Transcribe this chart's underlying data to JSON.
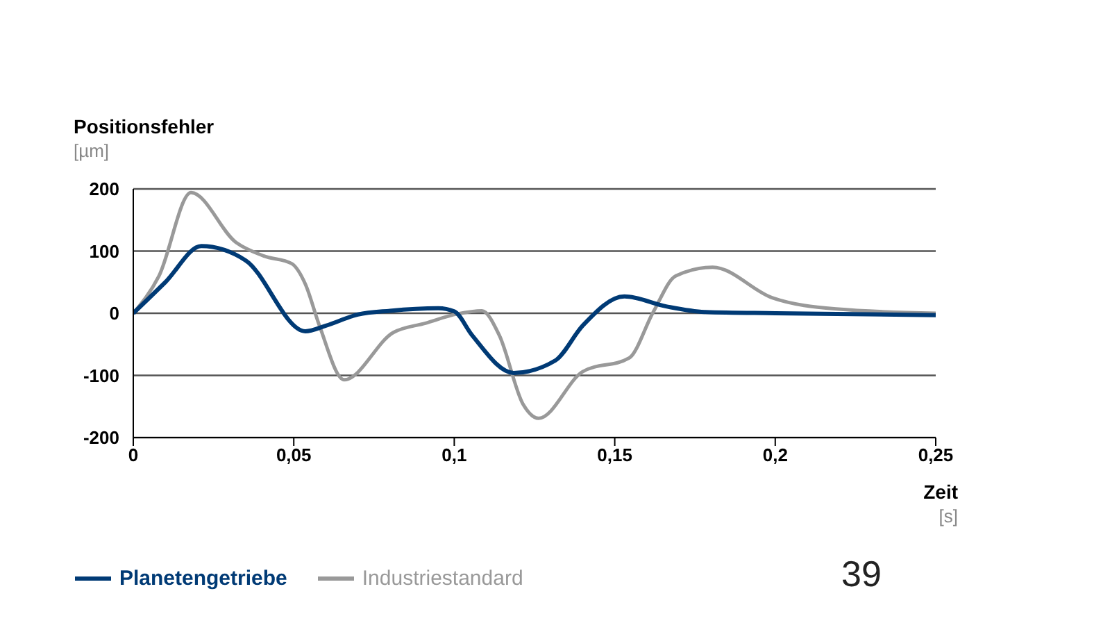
{
  "chart_data": {
    "type": "line",
    "ylabel": "Positionsfehler\n[µm]",
    "xlabel": "Zeit\n[s]",
    "xlim": [
      0,
      0.25
    ],
    "xticks": [
      0,
      {
        "value": 0.05,
        "label": "0,05"
      },
      {
        "value": 0.1,
        "label": "0,1"
      },
      {
        "value": 0.15,
        "label": "0,15"
      },
      {
        "value": 0.2,
        "label": "0,2"
      },
      {
        "value": 0.25,
        "label": "0,25"
      }
    ],
    "ylim": [
      -200,
      200
    ],
    "yticks": [
      -200,
      -100,
      0,
      100,
      200
    ],
    "grid": "y",
    "legend": "bottom",
    "marker": "none",
    "line_style": "solid",
    "annotations": [
      "39"
    ],
    "series": [
      {
        "name": "Planetengetriebe",
        "color": "#003a75",
        "x": [
          0,
          0.01,
          0.0212,
          0.035,
          0.0536,
          0.06,
          0.07,
          0.08,
          0.095,
          0.1,
          0.1055,
          0.1185,
          0.1315,
          0.14,
          0.153,
          0.166,
          0.178,
          0.2,
          0.25
        ],
        "values": [
          0,
          50,
          108,
          85,
          -29,
          -20,
          -2,
          4,
          8,
          3,
          -35,
          -96,
          -76,
          -20,
          27,
          11,
          2,
          0,
          -3
        ]
      },
      {
        "name": "Industriestandard",
        "color": "#999999",
        "x": [
          0,
          0.008,
          0.018,
          0.032,
          0.0407,
          0.0493,
          0.0536,
          0.058,
          0.0657,
          0.081,
          0.091,
          0.101,
          0.1086,
          0.114,
          0.1215,
          0.1263,
          0.14,
          0.1545,
          0.162,
          0.169,
          0.1805,
          0.199,
          0.219,
          0.25
        ],
        "values": [
          0,
          60,
          194,
          114,
          92,
          80,
          47,
          -20,
          -107,
          -31,
          -16,
          -1,
          4,
          -35,
          -147,
          -169,
          -94,
          -72,
          2,
          60,
          74,
          25,
          7,
          0
        ]
      }
    ]
  }
}
